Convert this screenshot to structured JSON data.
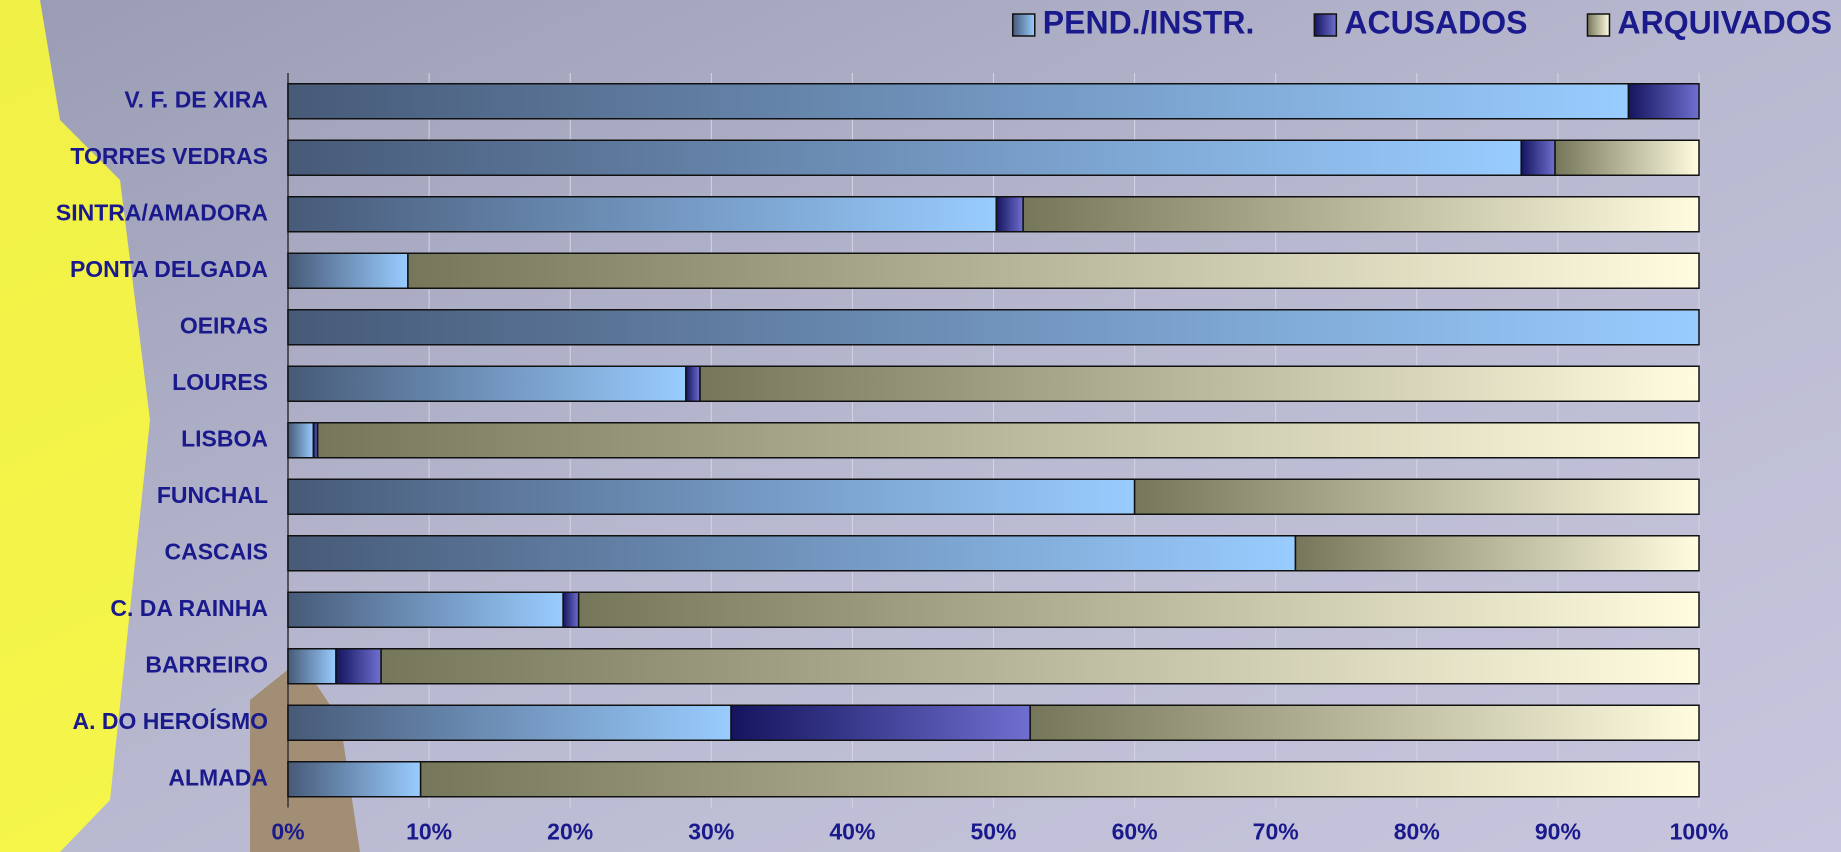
{
  "chart_data": {
    "type": "stacked_bar_horizontal",
    "categories": [
      "V. F. DE XIRA",
      "TORRES VEDRAS",
      "SINTRA/AMADORA",
      "PONTA DELGADA",
      "OEIRAS",
      "LOURES",
      "LISBOA",
      "FUNCHAL",
      "CASCAIS",
      "C. DA RAINHA",
      "BARREIRO",
      "A. DO HEROÍSMO",
      "ALMADA"
    ],
    "series": [
      {
        "name": "PEND./INSTR.",
        "color": "#99ccff",
        "values": [
          95,
          87.4,
          50.2,
          8.5,
          100,
          28.2,
          1.8,
          60,
          71.4,
          19.5,
          3.4,
          31.4,
          9.4
        ]
      },
      {
        "name": "ACUSADOS",
        "color": "#3333aa",
        "values": [
          5,
          2.4,
          1.9,
          0,
          0,
          1,
          0.3,
          0,
          0,
          1.1,
          3.2,
          21.2,
          0
        ]
      },
      {
        "name": "ARQUIVADOS",
        "color": "#fffce0",
        "values": [
          0,
          10.2,
          47.9,
          91.5,
          0,
          70.8,
          97.9,
          40,
          28.6,
          79.4,
          93.4,
          47.4,
          90.6
        ]
      }
    ],
    "xlim": [
      0,
      100
    ],
    "xticks": [
      {
        "value": 0,
        "label": "0%"
      },
      {
        "value": 10,
        "label": "10%"
      },
      {
        "value": 20,
        "label": "20%"
      },
      {
        "value": 30,
        "label": "30%"
      },
      {
        "value": 40,
        "label": "40%"
      },
      {
        "value": 50,
        "label": "50%"
      },
      {
        "value": 60,
        "label": "60%"
      },
      {
        "value": 70,
        "label": "70%"
      },
      {
        "value": 80,
        "label": "80%"
      },
      {
        "value": 90,
        "label": "90%"
      },
      {
        "value": 100,
        "label": "100%"
      }
    ],
    "grid": true,
    "legend": "top-right"
  }
}
